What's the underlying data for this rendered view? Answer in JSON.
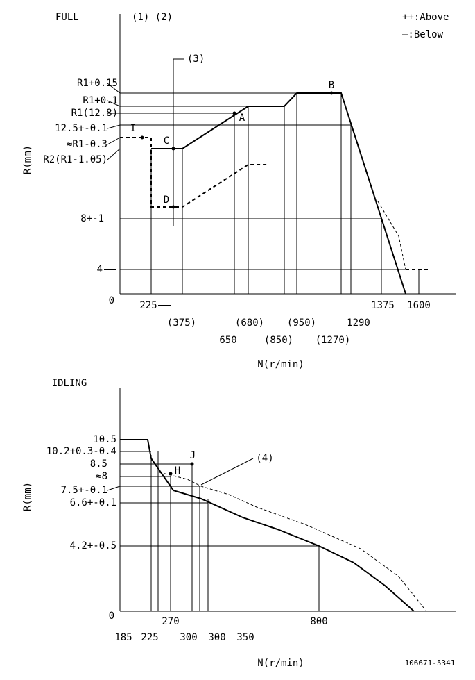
{
  "full": {
    "title": "FULL",
    "notes": "(1) (2)",
    "legend": [
      "++:Above",
      "—:Below"
    ],
    "callout": "(3)",
    "y_axis_label": "R(mm)",
    "y_labels": [
      "R1+0.15",
      "R1+0.1",
      "R1(12.8)",
      "12.5+-0.1",
      "≈R1-0.3",
      "R2(R1-1.05)",
      "8+-1",
      "4",
      "0"
    ],
    "point_labels": [
      "I",
      "C",
      "A",
      "B",
      "D"
    ],
    "x_labels": [
      "225",
      "(375)",
      "650",
      "(680)",
      "(850)",
      "(950)",
      "(1270)",
      "1290",
      "1375",
      "1600"
    ],
    "x_axis_label": "N(r/min)"
  },
  "idling": {
    "title": "IDLING",
    "y_axis_label": "R(mm)",
    "y_labels": [
      "10.5",
      "10.2+0.3-0.4",
      "8.5",
      "≈8",
      "7.5+-0.1",
      "6.6+-0.1",
      "4.2+-0.5",
      "0"
    ],
    "point_labels": [
      "J",
      "H"
    ],
    "callout": "(4)",
    "x_labels": [
      "185",
      "225",
      "270",
      "300",
      "300",
      "350",
      "800"
    ],
    "x_axis_label": "N(r/min)"
  },
  "footer": "106671-5341"
}
